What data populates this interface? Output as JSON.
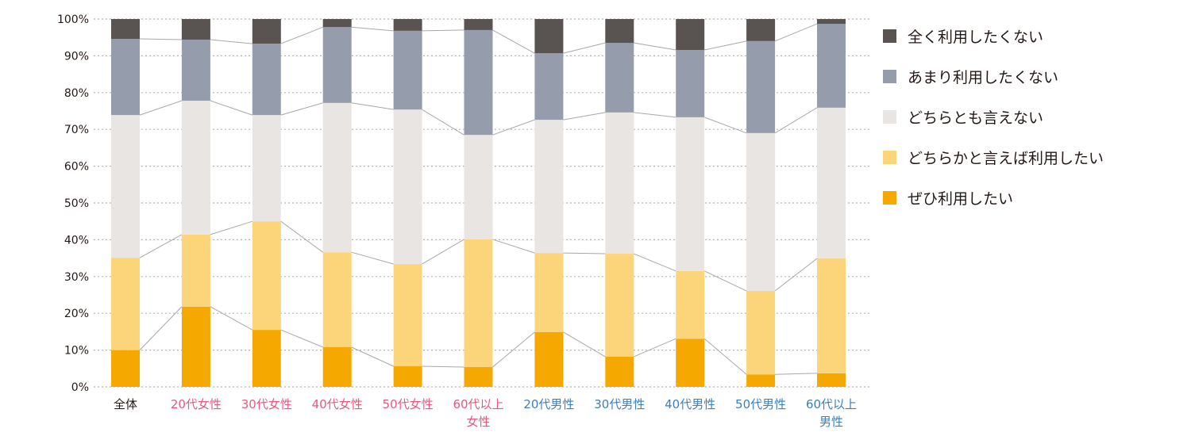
{
  "chart_data": {
    "type": "bar",
    "stacked": true,
    "ylim": [
      0,
      100
    ],
    "yticks": [
      "0%",
      "10%",
      "20%",
      "30%",
      "40%",
      "50%",
      "60%",
      "70%",
      "80%",
      "90%",
      "100%"
    ],
    "grid": true,
    "legend_position": "right",
    "categories": [
      {
        "label": "全体",
        "color": "#231815"
      },
      {
        "label": "20代女性",
        "color": "#e8577e"
      },
      {
        "label": "30代女性",
        "color": "#e8577e"
      },
      {
        "label": "40代女性",
        "color": "#e8577e"
      },
      {
        "label": "50代女性",
        "color": "#e8577e"
      },
      {
        "label": "60代以上\n女性",
        "color": "#e8577e"
      },
      {
        "label": "20代男性",
        "color": "#3a7fc1"
      },
      {
        "label": "30代男性",
        "color": "#3a7fc1"
      },
      {
        "label": "40代男性",
        "color": "#3a7fc1"
      },
      {
        "label": "50代男性",
        "color": "#3a7fc1"
      },
      {
        "label": "60代以上\n男性",
        "color": "#3a7fc1"
      }
    ],
    "series": [
      {
        "name": "ぜひ利用したい",
        "color": "#f5a900",
        "values": [
          10.0,
          21.8,
          15.5,
          10.8,
          5.6,
          5.4,
          14.9,
          8.2,
          13.1,
          3.4,
          3.7
        ]
      },
      {
        "name": "どちらかと言えば利用したい",
        "color": "#fcd57b",
        "values": [
          25.1,
          19.6,
          29.5,
          25.8,
          27.8,
          34.7,
          21.5,
          28.0,
          18.4,
          22.7,
          31.2
        ]
      },
      {
        "name": "どちらとも言えない",
        "color": "#e9e5e2",
        "values": [
          38.8,
          36.4,
          28.9,
          40.6,
          42.0,
          28.4,
          36.2,
          38.4,
          41.8,
          42.9,
          41.0
        ]
      },
      {
        "name": "あまり利用したくない",
        "color": "#959dac",
        "values": [
          20.7,
          16.6,
          19.4,
          20.6,
          21.4,
          28.5,
          18.1,
          18.9,
          18.3,
          25.0,
          22.8
        ]
      },
      {
        "name": "全く利用したくない",
        "color": "#595352",
        "values": [
          5.4,
          5.6,
          6.7,
          2.2,
          3.2,
          3.0,
          9.3,
          6.5,
          8.4,
          6.0,
          1.3
        ]
      }
    ]
  }
}
